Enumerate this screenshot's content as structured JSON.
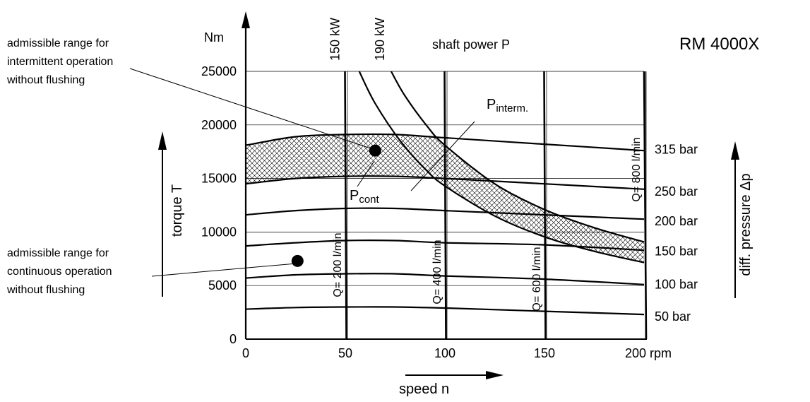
{
  "chart_data": {
    "type": "line",
    "title": "RM 4000X",
    "x_axis": {
      "label": "speed n",
      "unit": "rpm",
      "range": [
        0,
        200
      ],
      "ticks": [
        {
          "value": 0,
          "label": "0"
        },
        {
          "value": 50,
          "label": "50"
        },
        {
          "value": 100,
          "label": "100"
        },
        {
          "value": 150,
          "label": "150"
        },
        {
          "value": 200,
          "label": "200 rpm"
        }
      ]
    },
    "y_axis": {
      "label": "torque T",
      "unit": "Nm",
      "range": [
        0,
        25000
      ],
      "ticks": [
        {
          "value": 0,
          "label": "0"
        },
        {
          "value": 5000,
          "label": "5000"
        },
        {
          "value": 10000,
          "label": "10000"
        },
        {
          "value": 15000,
          "label": "15000"
        },
        {
          "value": 20000,
          "label": "20000"
        },
        {
          "value": 25000,
          "label": "25000"
        }
      ]
    },
    "right_axis_label": "diff. pressure Δp",
    "grid": true,
    "pressure_curves": [
      {
        "label": "315 bar",
        "points": [
          [
            0,
            18100
          ],
          [
            25,
            18900
          ],
          [
            50,
            19100
          ],
          [
            75,
            19100
          ],
          [
            100,
            18800
          ],
          [
            150,
            18200
          ],
          [
            200,
            17600
          ]
        ],
        "label_torque": 17700
      },
      {
        "label": "250 bar",
        "points": [
          [
            0,
            14500
          ],
          [
            25,
            15000
          ],
          [
            50,
            15200
          ],
          [
            75,
            15200
          ],
          [
            100,
            15000
          ],
          [
            150,
            14500
          ],
          [
            200,
            14000
          ]
        ],
        "label_torque": 13800
      },
      {
        "label": "200 bar",
        "points": [
          [
            0,
            11600
          ],
          [
            25,
            12000
          ],
          [
            50,
            12200
          ],
          [
            75,
            12200
          ],
          [
            100,
            12000
          ],
          [
            150,
            11600
          ],
          [
            200,
            11200
          ]
        ],
        "label_torque": 11000
      },
      {
        "label": "150 bar",
        "points": [
          [
            0,
            8700
          ],
          [
            25,
            9000
          ],
          [
            50,
            9200
          ],
          [
            75,
            9200
          ],
          [
            100,
            9000
          ],
          [
            150,
            8800
          ],
          [
            200,
            8300
          ]
        ],
        "label_torque": 8200
      },
      {
        "label": "100 bar",
        "points": [
          [
            0,
            5700
          ],
          [
            25,
            6000
          ],
          [
            50,
            6100
          ],
          [
            75,
            6100
          ],
          [
            100,
            5900
          ],
          [
            150,
            5600
          ],
          [
            200,
            5100
          ]
        ],
        "label_torque": 5100
      },
      {
        "label": "50 bar",
        "points": [
          [
            0,
            2800
          ],
          [
            25,
            2950
          ],
          [
            50,
            3000
          ],
          [
            75,
            3000
          ],
          [
            100,
            2900
          ],
          [
            150,
            2600
          ],
          [
            200,
            2300
          ]
        ],
        "label_torque": 2100
      }
    ],
    "flow_lines": [
      {
        "label": "Q= 200 l/min",
        "speed": 50
      },
      {
        "label": "Q= 400 l/min",
        "speed": 100
      },
      {
        "label": "Q= 600 l/min",
        "speed": 150
      },
      {
        "label": "Q= 800 l/min",
        "speed": 200
      }
    ],
    "power_curves": [
      {
        "label": "150 kW",
        "points": [
          [
            57,
            25000
          ],
          [
            65,
            22000
          ],
          [
            78,
            18400
          ],
          [
            90,
            15900
          ],
          [
            100,
            14300
          ],
          [
            125,
            11500
          ],
          [
            150,
            9550
          ],
          [
            175,
            8200
          ],
          [
            200,
            7150
          ]
        ]
      },
      {
        "label": "190 kW",
        "points": [
          [
            73,
            25000
          ],
          [
            80,
            22700
          ],
          [
            91,
            19900
          ],
          [
            100,
            18100
          ],
          [
            125,
            14500
          ],
          [
            150,
            12100
          ],
          [
            175,
            10400
          ],
          [
            200,
            9070
          ]
        ]
      }
    ],
    "shaft_power_label": "shaft power P",
    "p_interm_label": "P",
    "p_interm_sub": "interm.",
    "p_cont_label": "P",
    "p_cont_sub": "cont",
    "annotations": [
      {
        "lines": [
          "admissible range for",
          "intermittent operation",
          "without flushing"
        ],
        "target": [
          65,
          17600
        ]
      },
      {
        "lines": [
          "admissible range for",
          "continuous operation",
          "without flushing"
        ],
        "target": [
          26,
          7300
        ]
      }
    ]
  }
}
